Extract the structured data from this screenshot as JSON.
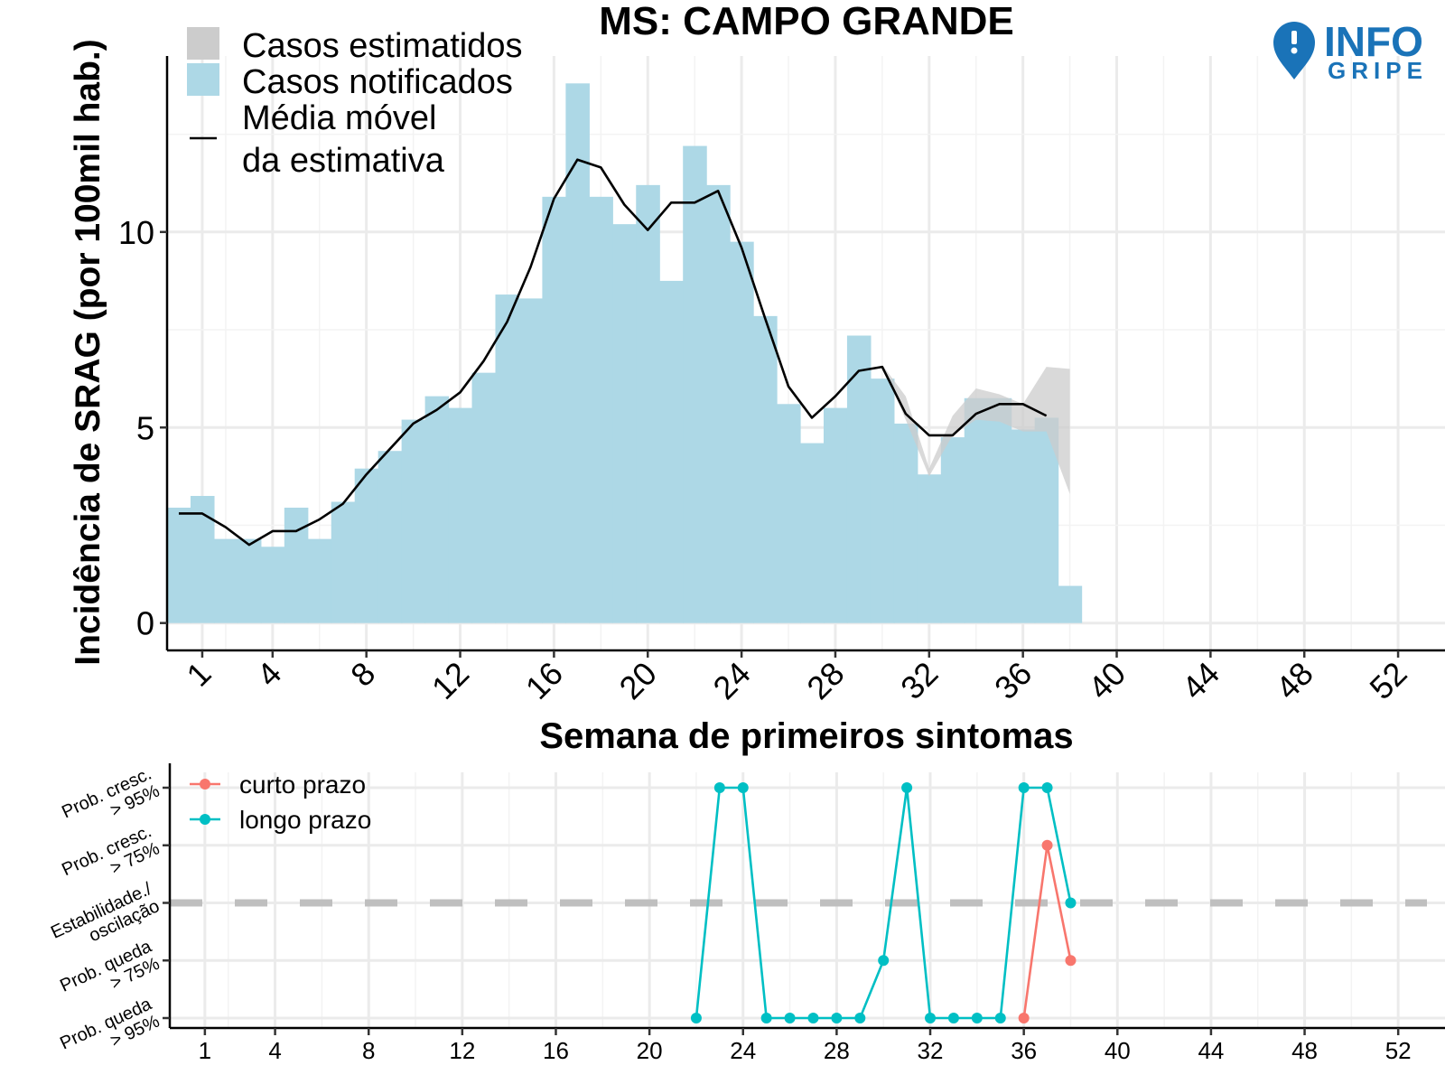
{
  "title": "MS: CAMPO GRANDE",
  "logo": {
    "line1": "INFO",
    "line2": "GRIPE",
    "icon": "map-pin-icon",
    "color": "#1a73b8"
  },
  "chart_data": [
    {
      "type": "bar",
      "title": "MS: CAMPO GRANDE",
      "xlabel": "Semana de primeiros sintomas",
      "ylabel": "Incidência de SRAG (por 100mil hab.)",
      "xlim": [
        -0.5,
        54
      ],
      "ylim": [
        -0.7,
        14.5
      ],
      "x_ticks": [
        1,
        4,
        8,
        12,
        16,
        20,
        24,
        28,
        32,
        36,
        40,
        44,
        48,
        52
      ],
      "y_ticks": [
        0,
        5,
        10
      ],
      "grid": true,
      "legend_position": "top-left",
      "legend": [
        "Casos estimatidos",
        "Casos notificados",
        "Média móvel\nda estimativa"
      ],
      "series": [
        {
          "name": "Casos notificados",
          "color": "#add8e6",
          "x": [
            0,
            1,
            2,
            3,
            4,
            5,
            6,
            7,
            8,
            9,
            10,
            11,
            12,
            13,
            14,
            15,
            16,
            17,
            18,
            19,
            20,
            21,
            22,
            23,
            24,
            25,
            26,
            27,
            28,
            29,
            30,
            31,
            32,
            33,
            34,
            35,
            36,
            37,
            38
          ],
          "values": [
            2.95,
            3.25,
            2.15,
            2.15,
            1.95,
            2.95,
            2.15,
            3.1,
            3.95,
            4.4,
            5.2,
            5.8,
            5.5,
            6.4,
            8.4,
            8.3,
            10.9,
            13.8,
            10.9,
            10.2,
            11.2,
            8.75,
            12.2,
            11.2,
            9.75,
            7.85,
            5.6,
            4.6,
            5.5,
            7.35,
            6.25,
            5.1,
            3.8,
            4.75,
            5.75,
            5.75,
            4.95,
            5.25,
            0.95
          ]
        },
        {
          "name": "Casos estimatidos",
          "color": "#cccccc",
          "x": [
            29,
            30,
            31,
            32,
            33,
            34,
            35,
            36,
            37,
            38
          ],
          "lower": [
            6.4,
            6.6,
            5.2,
            3.75,
            4.8,
            5.2,
            5.15,
            4.9,
            4.9,
            3.3
          ],
          "upper": [
            6.4,
            6.6,
            5.8,
            3.95,
            5.3,
            6.0,
            5.85,
            5.6,
            6.55,
            6.5
          ]
        },
        {
          "name": "Média móvel da estimativa",
          "color": "#000000",
          "x": [
            0,
            1,
            2,
            3,
            4,
            5,
            6,
            7,
            8,
            9,
            10,
            11,
            12,
            13,
            14,
            15,
            16,
            17,
            18,
            19,
            20,
            21,
            22,
            23,
            24,
            25,
            26,
            27,
            28,
            29,
            30,
            31,
            32,
            33,
            34,
            35,
            36,
            37
          ],
          "values": [
            2.8,
            2.8,
            2.45,
            2.0,
            2.35,
            2.35,
            2.65,
            3.05,
            3.8,
            4.45,
            5.1,
            5.45,
            5.9,
            6.7,
            7.7,
            9.1,
            10.85,
            11.85,
            11.65,
            10.7,
            10.05,
            10.75,
            10.75,
            11.05,
            9.6,
            7.8,
            6.05,
            5.25,
            5.8,
            6.45,
            6.55,
            5.35,
            4.8,
            4.8,
            5.35,
            5.6,
            5.6,
            5.3
          ]
        }
      ]
    },
    {
      "type": "line",
      "xlim": [
        -0.5,
        54
      ],
      "x_ticks": [
        1,
        4,
        8,
        12,
        16,
        20,
        24,
        28,
        32,
        36,
        40,
        44,
        48,
        52
      ],
      "y_categories": [
        "Prob. queda\n> 95%",
        "Prob. queda\n> 75%",
        "Estabilidade./\noscilação",
        "Prob. cresc.\n> 75%",
        "Prob. cresc.\n> 95%"
      ],
      "reference_line": {
        "y": 0,
        "style": "dashed",
        "color": "#bfbfbf"
      },
      "grid": true,
      "legend_position": "top-left",
      "series": [
        {
          "name": "curto prazo",
          "color": "#f8766d",
          "x": [
            36,
            37,
            38
          ],
          "values": [
            -2,
            1,
            -1
          ]
        },
        {
          "name": "longo prazo",
          "color": "#00bfc4",
          "x": [
            22,
            23,
            24,
            25,
            26,
            27,
            28,
            29,
            30,
            31,
            32,
            33,
            34,
            35,
            36,
            37,
            38
          ],
          "values": [
            -2,
            2,
            2,
            -2,
            -2,
            -2,
            -2,
            -2,
            -1,
            2,
            -2,
            -2,
            -2,
            -2,
            2,
            2,
            0
          ]
        }
      ]
    }
  ]
}
